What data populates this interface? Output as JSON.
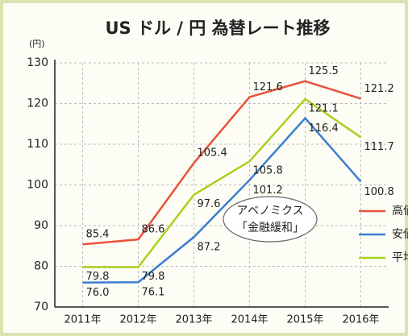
{
  "chart_data": {
    "type": "line",
    "title": "US ドル / 円  為替レート推移",
    "y_unit": "(円)",
    "categories": [
      "2011年",
      "2012年",
      "2013年",
      "2014年",
      "2015年",
      "2016年"
    ],
    "series": [
      {
        "name": "高値",
        "color": "#e8513a",
        "values": [
          85.4,
          86.6,
          105.4,
          121.6,
          125.5,
          121.2
        ],
        "value_labels": [
          "85.4",
          "86.6",
          "105.4",
          "121.6",
          "125.5",
          "121.2"
        ]
      },
      {
        "name": "安値",
        "color": "#3a7fd0",
        "values": [
          76.0,
          76.1,
          87.2,
          101.2,
          116.4,
          100.8
        ],
        "value_labels": [
          "76.0",
          "76.1",
          "87.2",
          "101.2",
          "116.4",
          "100.8"
        ]
      },
      {
        "name": "平均",
        "color": "#a6d21e",
        "values": [
          79.8,
          79.8,
          97.6,
          105.8,
          121.1,
          111.7
        ],
        "value_labels": [
          "79.8",
          "79.8",
          "97.6",
          "105.8",
          "121.1",
          "111.7"
        ]
      }
    ],
    "annotation": [
      "アベノミクス",
      "「金融緩和」"
    ],
    "ylim": [
      70,
      130
    ],
    "yticks": [
      70,
      80,
      90,
      100,
      110,
      120,
      130
    ],
    "grid": true
  }
}
